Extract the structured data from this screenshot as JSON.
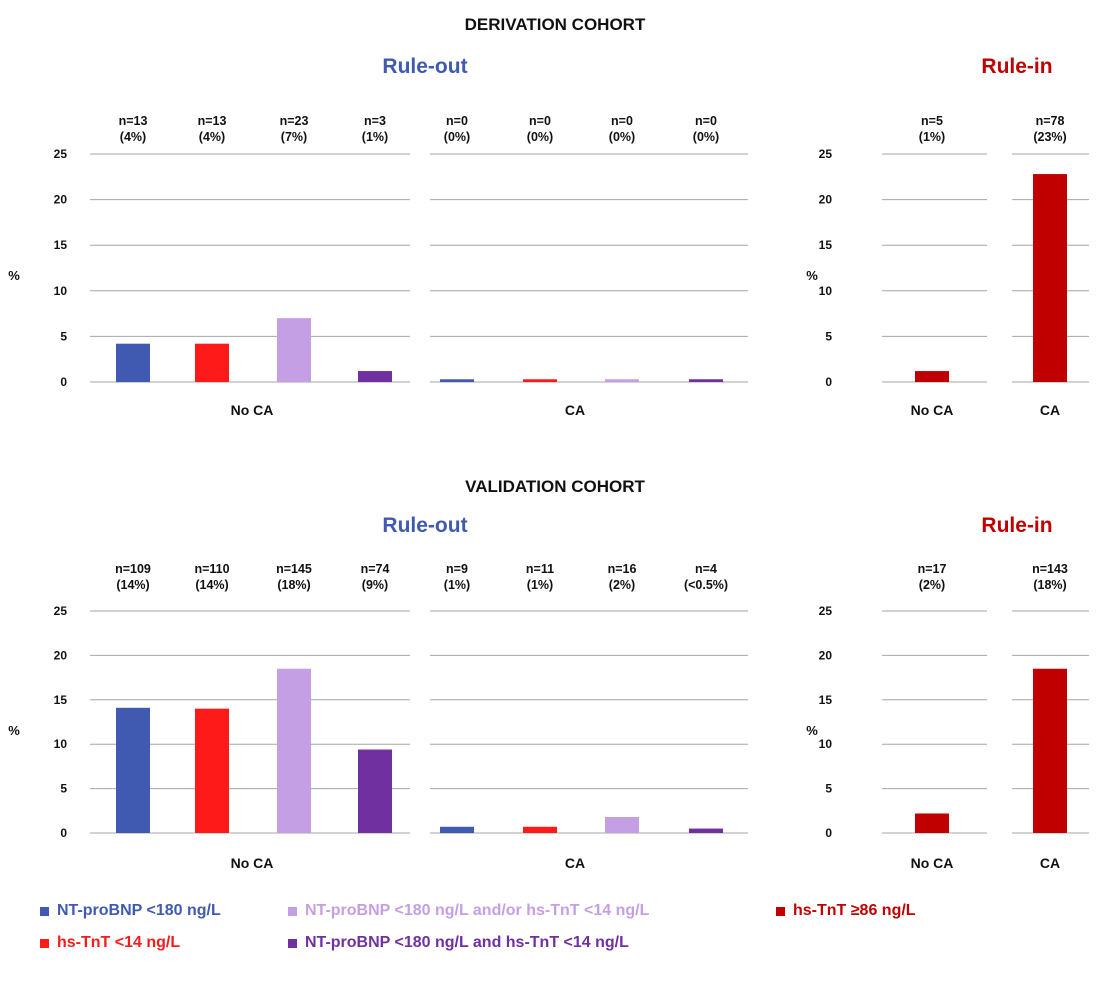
{
  "colors": {
    "nt_probnp": "#3f5ab0",
    "hs_tnt": "#ff1a1a",
    "and_or": "#c59fe3",
    "and": "#7030a0",
    "hs_tnt_86": "#c00000",
    "rule_out_title": "#3f5ab0",
    "rule_in_title": "#c00000",
    "gridline": "#a6a6a6"
  },
  "legend": [
    {
      "label": "NT-proBNP <180 ng/L",
      "color": "#3f5ab0",
      "text_color": "#3f5ab0"
    },
    {
      "label": "NT-proBNP <180 ng/L and/or hs-TnT <14 ng/L",
      "color": "#c59fe3",
      "text_color": "#c59fe3"
    },
    {
      "label": "hs-TnT ≥86 ng/L",
      "color": "#c00000",
      "text_color": "#c00000"
    },
    {
      "label": "hs-TnT <14 ng/L",
      "color": "#ff1a1a",
      "text_color": "#ff1a1a"
    },
    {
      "label": "NT-proBNP <180 ng/L and hs-TnT <14 ng/L",
      "color": "#7030a0",
      "text_color": "#7030a0"
    }
  ],
  "chart_data": [
    {
      "cohort": "DERIVATION COHORT",
      "type": "bar",
      "panels": [
        {
          "title": "Rule-out",
          "ylabel": "%",
          "ylim": [
            0,
            25
          ],
          "yticks": [
            0,
            5,
            10,
            15,
            20,
            25
          ],
          "groups": [
            {
              "category": "No CA",
              "bars": [
                {
                  "series": "NT-proBNP <180 ng/L",
                  "value": 4.2,
                  "n": "n=13",
                  "pct": "(4%)"
                },
                {
                  "series": "hs-TnT <14 ng/L",
                  "value": 4.2,
                  "n": "n=13",
                  "pct": "(4%)"
                },
                {
                  "series": "NT-proBNP <180 ng/L and/or hs-TnT <14 ng/L",
                  "value": 7.0,
                  "n": "n=23",
                  "pct": "(7%)"
                },
                {
                  "series": "NT-proBNP <180 ng/L and hs-TnT <14 ng/L",
                  "value": 1.2,
                  "n": "n=3",
                  "pct": "(1%)"
                }
              ]
            },
            {
              "category": "CA",
              "bars": [
                {
                  "series": "NT-proBNP <180 ng/L",
                  "value": 0,
                  "n": "n=0",
                  "pct": "(0%)"
                },
                {
                  "series": "hs-TnT <14 ng/L",
                  "value": 0,
                  "n": "n=0",
                  "pct": "(0%)"
                },
                {
                  "series": "NT-proBNP <180 ng/L and/or hs-TnT <14 ng/L",
                  "value": 0,
                  "n": "n=0",
                  "pct": "(0%)"
                },
                {
                  "series": "NT-proBNP <180 ng/L and hs-TnT <14 ng/L",
                  "value": 0,
                  "n": "n=0",
                  "pct": "(0%)"
                }
              ]
            }
          ]
        },
        {
          "title": "Rule-in",
          "ylabel": "%",
          "ylim": [
            0,
            25
          ],
          "yticks": [
            0,
            5,
            10,
            15,
            20,
            25
          ],
          "groups": [
            {
              "category": "No CA",
              "bars": [
                {
                  "series": "hs-TnT ≥86 ng/L",
                  "value": 1.2,
                  "n": "n=5",
                  "pct": "(1%)"
                }
              ]
            },
            {
              "category": "CA",
              "bars": [
                {
                  "series": "hs-TnT ≥86 ng/L",
                  "value": 22.8,
                  "n": "n=78",
                  "pct": "(23%)"
                }
              ]
            }
          ]
        }
      ]
    },
    {
      "cohort": "VALIDATION COHORT",
      "type": "bar",
      "panels": [
        {
          "title": "Rule-out",
          "ylabel": "%",
          "ylim": [
            0,
            25
          ],
          "yticks": [
            0,
            5,
            10,
            15,
            20,
            25
          ],
          "groups": [
            {
              "category": "No CA",
              "bars": [
                {
                  "series": "NT-proBNP <180 ng/L",
                  "value": 14.1,
                  "n": "n=109",
                  "pct": "(14%)"
                },
                {
                  "series": "hs-TnT <14 ng/L",
                  "value": 14.0,
                  "n": "n=110",
                  "pct": "(14%)"
                },
                {
                  "series": "NT-proBNP <180 ng/L and/or hs-TnT <14 ng/L",
                  "value": 18.5,
                  "n": "n=145",
                  "pct": "(18%)"
                },
                {
                  "series": "NT-proBNP <180 ng/L and hs-TnT <14 ng/L",
                  "value": 9.4,
                  "n": "n=74",
                  "pct": "(9%)"
                }
              ]
            },
            {
              "category": "CA",
              "bars": [
                {
                  "series": "NT-proBNP <180 ng/L",
                  "value": 0.7,
                  "n": "n=9",
                  "pct": "(1%)"
                },
                {
                  "series": "hs-TnT <14 ng/L",
                  "value": 0.7,
                  "n": "n=11",
                  "pct": "(1%)"
                },
                {
                  "series": "NT-proBNP <180 ng/L and/or hs-TnT <14 ng/L",
                  "value": 1.8,
                  "n": "n=16",
                  "pct": "(2%)"
                },
                {
                  "series": "NT-proBNP <180 ng/L and hs-TnT <14 ng/L",
                  "value": 0.5,
                  "n": "n=4",
                  "pct": "(<0.5%)"
                }
              ]
            }
          ]
        },
        {
          "title": "Rule-in",
          "ylabel": "%",
          "ylim": [
            0,
            25
          ],
          "yticks": [
            0,
            5,
            10,
            15,
            20,
            25
          ],
          "groups": [
            {
              "category": "No CA",
              "bars": [
                {
                  "series": "hs-TnT ≥86 ng/L",
                  "value": 2.2,
                  "n": "n=17",
                  "pct": "(2%)"
                }
              ]
            },
            {
              "category": "CA",
              "bars": [
                {
                  "series": "hs-TnT ≥86 ng/L",
                  "value": 18.5,
                  "n": "n=143",
                  "pct": "(18%)"
                }
              ]
            }
          ]
        }
      ]
    }
  ]
}
